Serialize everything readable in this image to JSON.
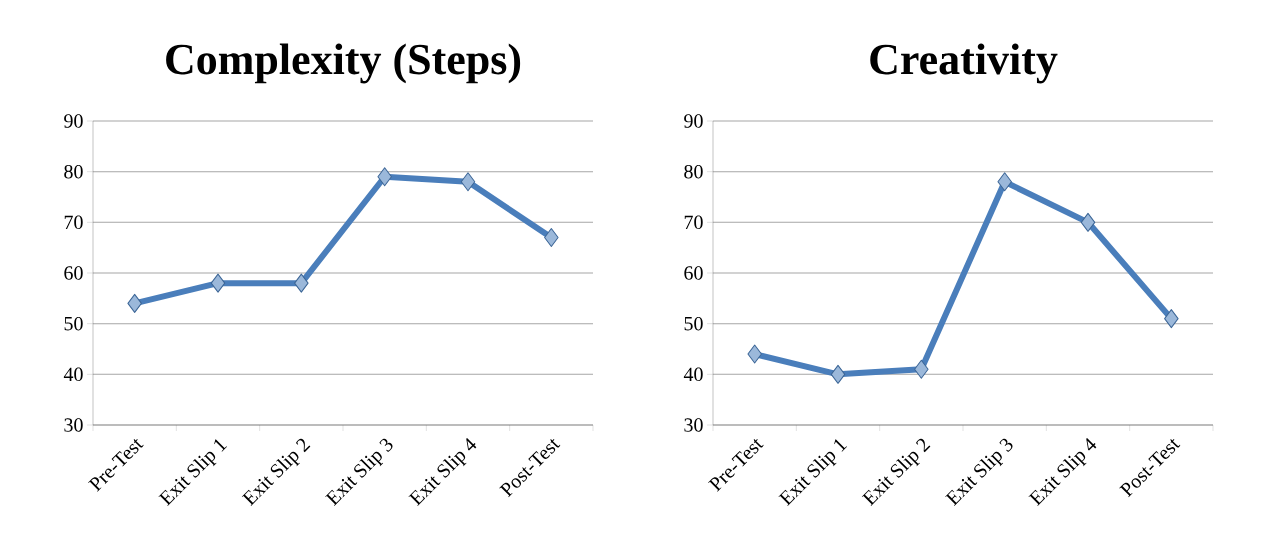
{
  "chart_data": [
    {
      "type": "line",
      "title": "Complexity (Steps)",
      "categories": [
        "Pre-Test",
        "Exit Slip 1",
        "Exit Slip 2",
        "Exit Slip 3",
        "Exit Slip 4",
        "Post-Test"
      ],
      "values": [
        54,
        58,
        58,
        79,
        78,
        67
      ],
      "color": "#4a7ebb",
      "ylim": [
        30,
        90
      ],
      "yticks": [
        30,
        40,
        50,
        60,
        70,
        80,
        90
      ],
      "grid": "y",
      "marker": "diamond"
    },
    {
      "type": "line",
      "title": "Creativity",
      "categories": [
        "Pre-Test",
        "Exit Slip 1",
        "Exit Slip 2",
        "Exit Slip 3",
        "Exit Slip 4",
        "Post-Test"
      ],
      "values": [
        44,
        40,
        41,
        78,
        70,
        51
      ],
      "color": "#4a7ebb",
      "ylim": [
        30,
        90
      ],
      "yticks": [
        30,
        40,
        50,
        60,
        70,
        80,
        90
      ],
      "grid": "y",
      "marker": "diamond"
    }
  ]
}
